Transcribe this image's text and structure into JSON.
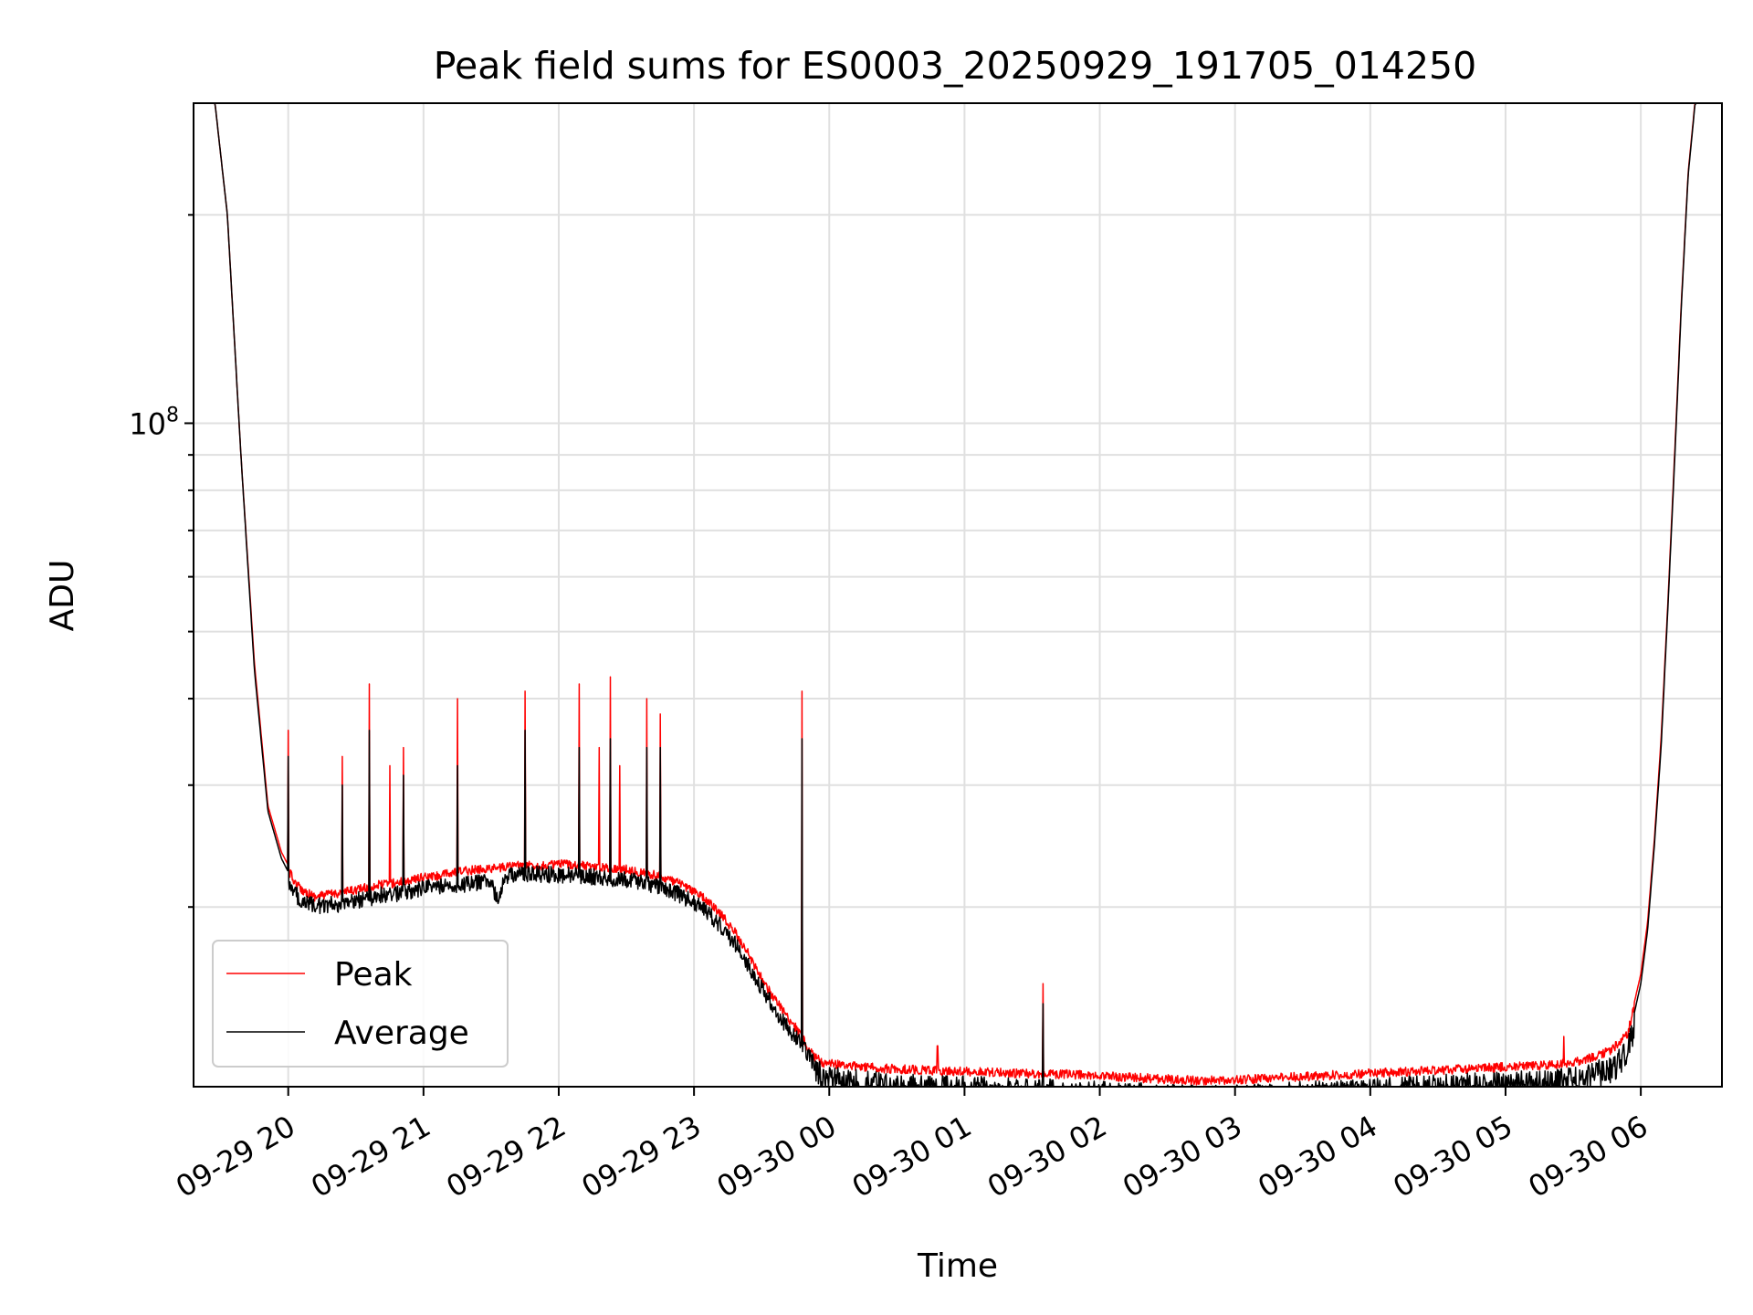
{
  "chart_data": {
    "type": "line",
    "title": "Peak field sums for ES0003_20250929_191705_014250",
    "xlabel": "Time",
    "ylabel": "ADU",
    "yscale": "log",
    "ylim": [
      11000000,
      290000000
    ],
    "xlim_hours": [
      19.3,
      30.6
    ],
    "grid": true,
    "legend_position": "lower-left",
    "x_ticks": [
      {
        "h": 20,
        "label": "09-29 20"
      },
      {
        "h": 21,
        "label": "09-29 21"
      },
      {
        "h": 22,
        "label": "09-29 22"
      },
      {
        "h": 23,
        "label": "09-29 23"
      },
      {
        "h": 24,
        "label": "09-30 00"
      },
      {
        "h": 25,
        "label": "09-30 01"
      },
      {
        "h": 26,
        "label": "09-30 02"
      },
      {
        "h": 27,
        "label": "09-30 03"
      },
      {
        "h": 28,
        "label": "09-30 04"
      },
      {
        "h": 29,
        "label": "09-30 05"
      },
      {
        "h": 30,
        "label": "09-30 06"
      }
    ],
    "y_major_ticks": [
      {
        "v": 100000000,
        "base": "10",
        "exp": "8"
      }
    ],
    "y_minor_ticks": [
      20000000,
      30000000,
      40000000,
      50000000,
      60000000,
      70000000,
      80000000,
      90000000,
      200000000
    ],
    "series": [
      {
        "name": "Peak",
        "color": "#ff0000",
        "x": [
          19.38,
          19.45,
          19.55,
          19.65,
          19.75,
          19.85,
          19.95,
          20.05,
          20.1,
          20.2,
          20.3,
          20.4,
          20.5,
          20.6,
          20.7,
          20.8,
          20.9,
          21.0,
          21.1,
          21.2,
          21.3,
          21.4,
          21.5,
          21.55,
          21.6,
          21.65,
          21.7,
          21.8,
          21.9,
          22.0,
          22.1,
          22.2,
          22.3,
          22.4,
          22.5,
          22.6,
          22.7,
          22.8,
          22.9,
          23.0,
          23.1,
          23.2,
          23.3,
          23.4,
          23.5,
          23.6,
          23.7,
          23.8,
          23.85,
          23.9,
          23.95,
          24.1,
          24.3,
          24.5,
          24.7,
          24.9,
          25.1,
          25.3,
          25.5,
          25.7,
          25.9,
          26.1,
          26.3,
          26.5,
          26.7,
          26.9,
          27.1,
          27.3,
          27.5,
          27.7,
          27.9,
          28.1,
          28.3,
          28.5,
          28.7,
          28.9,
          29.1,
          29.3,
          29.5,
          29.6,
          29.7,
          29.8,
          29.9,
          29.95,
          30.0,
          30.05,
          30.1,
          30.15,
          30.2,
          30.25,
          30.3,
          30.35,
          30.4,
          30.45,
          30.5,
          30.55
        ],
        "y": [
          300000000,
          300000000,
          200000000,
          90000000,
          45000000,
          28000000,
          24000000,
          22000000,
          21500000,
          21000000,
          21200000,
          21300000,
          21500000,
          21700000,
          21900000,
          22000000,
          22200000,
          22400000,
          22500000,
          22700000,
          22900000,
          23000000,
          23100000,
          23100000,
          23200000,
          23300000,
          23300000,
          23300000,
          23300000,
          23400000,
          23400000,
          23300000,
          23200000,
          23100000,
          23000000,
          22800000,
          22600000,
          22300000,
          21900000,
          21400000,
          20700000,
          19800000,
          18700000,
          17400000,
          16000000,
          14900000,
          14000000,
          13200000,
          12600000,
          12300000,
          12100000,
          12000000,
          11900000,
          11850000,
          11800000,
          11750000,
          11750000,
          11700000,
          11650000,
          11650000,
          11600000,
          11550000,
          11500000,
          11450000,
          11400000,
          11400000,
          11450000,
          11500000,
          11550000,
          11600000,
          11650000,
          11700000,
          11750000,
          11800000,
          11850000,
          11900000,
          11950000,
          12000000,
          12100000,
          12250000,
          12400000,
          12700000,
          13300000,
          14500000,
          16000000,
          19000000,
          25000000,
          35000000,
          55000000,
          90000000,
          150000000,
          230000000,
          290000000,
          300000000,
          300000000,
          300000000
        ],
        "spikes": [
          {
            "h": 20.0,
            "v": 36000000
          },
          {
            "h": 20.4,
            "v": 33000000
          },
          {
            "h": 20.6,
            "v": 42000000
          },
          {
            "h": 20.75,
            "v": 32000000
          },
          {
            "h": 20.85,
            "v": 34000000
          },
          {
            "h": 21.25,
            "v": 40000000
          },
          {
            "h": 21.75,
            "v": 41000000
          },
          {
            "h": 22.15,
            "v": 42000000
          },
          {
            "h": 22.3,
            "v": 34000000
          },
          {
            "h": 22.38,
            "v": 43000000
          },
          {
            "h": 22.45,
            "v": 32000000
          },
          {
            "h": 22.65,
            "v": 40000000
          },
          {
            "h": 22.75,
            "v": 38000000
          },
          {
            "h": 23.8,
            "v": 41000000
          },
          {
            "h": 24.8,
            "v": 12600000
          },
          {
            "h": 25.58,
            "v": 15500000
          },
          {
            "h": 29.43,
            "v": 13000000
          }
        ]
      },
      {
        "name": "Average",
        "color": "#000000",
        "x": [
          19.38,
          19.45,
          19.55,
          19.65,
          19.75,
          19.85,
          19.95,
          20.05,
          20.1,
          20.2,
          20.3,
          20.4,
          20.5,
          20.6,
          20.7,
          20.8,
          20.9,
          21.0,
          21.1,
          21.2,
          21.3,
          21.4,
          21.5,
          21.55,
          21.6,
          21.65,
          21.7,
          21.8,
          21.9,
          22.0,
          22.1,
          22.2,
          22.3,
          22.4,
          22.5,
          22.6,
          22.7,
          22.8,
          22.9,
          23.0,
          23.1,
          23.2,
          23.3,
          23.4,
          23.5,
          23.6,
          23.7,
          23.8,
          23.85,
          23.9,
          23.95,
          24.1,
          24.3,
          24.5,
          24.7,
          24.9,
          25.1,
          25.3,
          25.5,
          25.7,
          25.9,
          26.1,
          26.3,
          26.5,
          26.7,
          26.9,
          27.1,
          27.3,
          27.5,
          27.7,
          27.9,
          28.1,
          28.3,
          28.5,
          28.7,
          28.9,
          29.1,
          29.3,
          29.5,
          29.6,
          29.7,
          29.8,
          29.9,
          29.95,
          30.0,
          30.05,
          30.1,
          30.15,
          30.2,
          30.25,
          30.3,
          30.35,
          30.4,
          30.45,
          30.5,
          30.55
        ],
        "y": [
          300000000,
          300000000,
          200000000,
          90000000,
          44000000,
          27500000,
          23500000,
          21500000,
          21000000,
          20600000,
          20700000,
          20800000,
          21000000,
          21200000,
          21400000,
          21500000,
          21700000,
          21900000,
          22000000,
          22100000,
          22200000,
          22300000,
          22400000,
          20900000,
          22600000,
          22800000,
          22900000,
          23000000,
          22900000,
          22900000,
          22800000,
          22800000,
          22700000,
          22600000,
          22500000,
          22300000,
          22100000,
          21800000,
          21400000,
          20900000,
          20200000,
          19300000,
          18200000,
          17000000,
          15700000,
          14600000,
          13700000,
          13000000,
          12500000,
          12100000,
          11900000,
          11700000,
          11600000,
          11500000,
          11450000,
          11400000,
          11400000,
          11350000,
          11300000,
          11300000,
          11250000,
          11200000,
          11150000,
          11100000,
          11050000,
          11050000,
          11100000,
          11150000,
          11200000,
          11250000,
          11300000,
          11350000,
          11400000,
          11450000,
          11500000,
          11550000,
          11600000,
          11650000,
          11750000,
          11900000,
          12050000,
          12300000,
          12900000,
          14000000,
          15500000,
          18500000,
          24500000,
          34000000,
          54000000,
          88000000,
          148000000,
          228000000,
          288000000,
          300000000,
          300000000,
          300000000
        ],
        "spikes": [
          {
            "h": 20.0,
            "v": 33000000
          },
          {
            "h": 20.4,
            "v": 30000000
          },
          {
            "h": 20.6,
            "v": 36000000
          },
          {
            "h": 20.85,
            "v": 31000000
          },
          {
            "h": 21.25,
            "v": 32000000
          },
          {
            "h": 21.75,
            "v": 36000000
          },
          {
            "h": 22.15,
            "v": 34000000
          },
          {
            "h": 22.38,
            "v": 35000000
          },
          {
            "h": 22.65,
            "v": 34000000
          },
          {
            "h": 22.75,
            "v": 34000000
          },
          {
            "h": 23.8,
            "v": 35000000
          },
          {
            "h": 25.58,
            "v": 14500000
          }
        ]
      }
    ]
  }
}
